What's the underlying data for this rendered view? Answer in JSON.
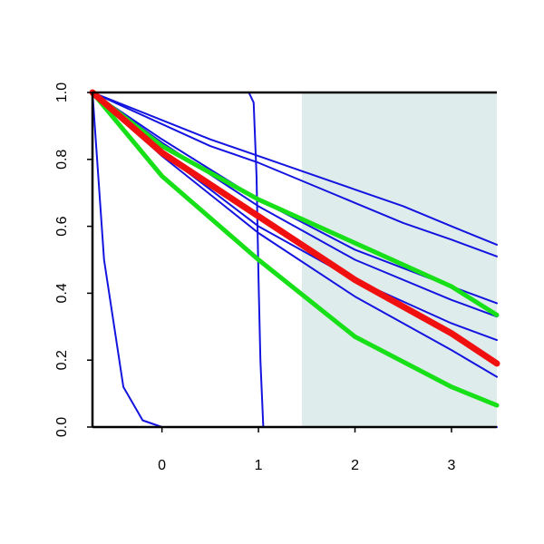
{
  "chart_data": {
    "type": "line",
    "title": "",
    "xlabel": "",
    "ylabel": "",
    "xlim": [
      -0.72,
      3.47
    ],
    "ylim": [
      0,
      1
    ],
    "x_ticks": [
      0,
      1,
      2,
      3
    ],
    "y_ticks": [
      0.0,
      0.2,
      0.4,
      0.6,
      0.8,
      1.0
    ],
    "x_tick_labels": [
      "0",
      "1",
      "2",
      "3"
    ],
    "y_tick_labels": [
      "0.0",
      "0.2",
      "0.4",
      "0.6",
      "0.8",
      "1.0"
    ],
    "grid": false,
    "shaded_region": {
      "x_start": 1.45,
      "x_end": 3.47,
      "color": "#deeceb"
    },
    "series": [
      {
        "color": "#1414e0",
        "width": 2,
        "x": [
          -0.72,
          -0.6,
          -0.4,
          -0.2,
          0.0
        ],
        "y": [
          1.0,
          0.5,
          0.12,
          0.02,
          0.0
        ]
      },
      {
        "color": "#1414e0",
        "width": 2,
        "x": [
          -0.72,
          0.9,
          0.95,
          0.98,
          1.0,
          1.02,
          1.05,
          3.47
        ],
        "y": [
          1.0,
          1.0,
          0.97,
          0.75,
          0.45,
          0.2,
          0.0,
          0.0
        ]
      },
      {
        "color": "#1414e0",
        "width": 2,
        "x": [
          -0.72,
          0.5,
          1.0,
          1.5,
          2.0,
          2.5,
          3.0,
          3.47
        ],
        "y": [
          1.0,
          0.86,
          0.81,
          0.76,
          0.71,
          0.66,
          0.6,
          0.545
        ]
      },
      {
        "color": "#1414e0",
        "width": 2,
        "x": [
          -0.72,
          0.5,
          1.0,
          1.5,
          2.0,
          2.5,
          3.0,
          3.47
        ],
        "y": [
          1.0,
          0.84,
          0.79,
          0.73,
          0.67,
          0.61,
          0.56,
          0.51
        ]
      },
      {
        "color": "#1414e0",
        "width": 2,
        "x": [
          -0.72,
          0.0,
          1.0,
          2.0,
          3.0,
          3.47
        ],
        "y": [
          1.0,
          0.86,
          0.68,
          0.53,
          0.42,
          0.37
        ]
      },
      {
        "color": "#1414e0",
        "width": 2,
        "x": [
          -0.72,
          0.0,
          1.0,
          2.0,
          3.0,
          3.47
        ],
        "y": [
          1.0,
          0.85,
          0.66,
          0.5,
          0.38,
          0.33
        ]
      },
      {
        "color": "#1414e0",
        "width": 2,
        "x": [
          -0.72,
          0.0,
          1.0,
          2.0,
          3.0,
          3.47
        ],
        "y": [
          1.0,
          0.82,
          0.6,
          0.44,
          0.31,
          0.26
        ]
      },
      {
        "color": "#1414e0",
        "width": 2,
        "x": [
          -0.72,
          0.0,
          1.0,
          2.0,
          3.0,
          3.47
        ],
        "y": [
          1.0,
          0.81,
          0.58,
          0.39,
          0.23,
          0.15
        ]
      },
      {
        "color": "#18e018",
        "width": 5,
        "x": [
          -0.72,
          0.0,
          1.0,
          2.0,
          3.0,
          3.47
        ],
        "y": [
          1.0,
          0.84,
          0.68,
          0.55,
          0.42,
          0.335
        ]
      },
      {
        "color": "#18e018",
        "width": 5,
        "x": [
          -0.72,
          0.0,
          1.0,
          2.0,
          3.0,
          3.47
        ],
        "y": [
          1.0,
          0.75,
          0.5,
          0.27,
          0.12,
          0.065
        ]
      },
      {
        "color": "#f01010",
        "width": 7,
        "x": [
          -0.72,
          0.0,
          1.0,
          2.0,
          3.0,
          3.47
        ],
        "y": [
          1.0,
          0.82,
          0.63,
          0.44,
          0.28,
          0.19
        ]
      }
    ]
  }
}
